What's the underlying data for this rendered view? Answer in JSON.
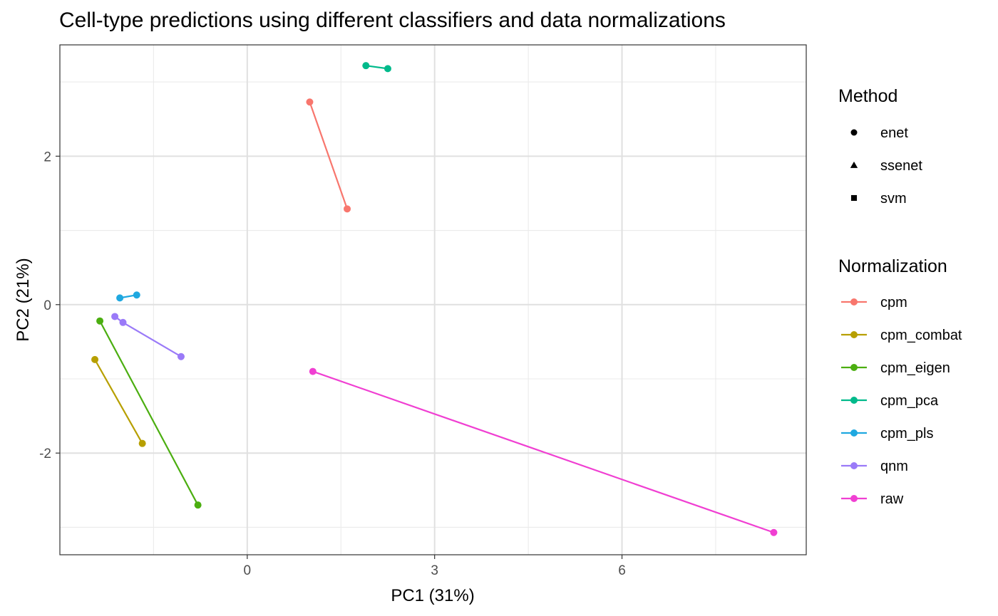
{
  "chart_data": {
    "type": "scatter",
    "title": "Cell-type predictions using different classifiers and data normalizations",
    "xlabel": "PC1 (31%)",
    "ylabel": "PC2 (21%)",
    "xlim": [
      -3.0,
      8.95
    ],
    "ylim": [
      -3.37,
      3.5
    ],
    "x_ticks": [
      0,
      3,
      6
    ],
    "y_ticks": [
      -2,
      0,
      2
    ],
    "x_tick_labels": [
      "0",
      "3",
      "6"
    ],
    "y_tick_labels": [
      "-2",
      "0",
      "2"
    ],
    "grid": true,
    "legend_placement": "right",
    "method_legend": {
      "title": "Method",
      "items": [
        {
          "label": "enet",
          "shape": "circle"
        },
        {
          "label": "ssenet",
          "shape": "triangle"
        },
        {
          "label": "svm",
          "shape": "square"
        }
      ]
    },
    "series_legend_title": "Normalization",
    "series": [
      {
        "name": "cpm",
        "color": "#F8766D",
        "points": [
          {
            "x": 1.6,
            "y": 1.29,
            "method": "enet"
          },
          {
            "x": 1.0,
            "y": 2.73,
            "method": "ssenet"
          }
        ]
      },
      {
        "name": "cpm_combat",
        "color": "#B79F00",
        "points": [
          {
            "x": -2.44,
            "y": -0.74,
            "method": "enet"
          },
          {
            "x": -1.68,
            "y": -1.87,
            "method": "ssenet"
          }
        ]
      },
      {
        "name": "cpm_eigen",
        "color": "#4BAE10",
        "points": [
          {
            "x": -2.36,
            "y": -0.22,
            "method": "enet"
          },
          {
            "x": -0.79,
            "y": -2.7,
            "method": "ssenet"
          }
        ]
      },
      {
        "name": "cpm_pca",
        "color": "#00BA8B",
        "points": [
          {
            "x": 1.9,
            "y": 3.22,
            "method": "enet"
          },
          {
            "x": 2.25,
            "y": 3.18,
            "method": "ssenet"
          }
        ]
      },
      {
        "name": "cpm_pls",
        "color": "#1FA8E0",
        "points": [
          {
            "x": -2.04,
            "y": 0.09,
            "method": "enet"
          },
          {
            "x": -1.77,
            "y": 0.13,
            "method": "ssenet"
          }
        ]
      },
      {
        "name": "qnm",
        "color": "#9A7AF8",
        "points": [
          {
            "x": -2.12,
            "y": -0.16,
            "method": "enet"
          },
          {
            "x": -1.99,
            "y": -0.24,
            "method": "ssenet"
          },
          {
            "x": -1.06,
            "y": -0.7,
            "method": "svm"
          }
        ]
      },
      {
        "name": "raw",
        "color": "#F03FD2",
        "points": [
          {
            "x": 8.43,
            "y": -3.07,
            "method": "enet"
          },
          {
            "x": 1.05,
            "y": -0.9,
            "method": "ssenet"
          }
        ]
      }
    ]
  }
}
